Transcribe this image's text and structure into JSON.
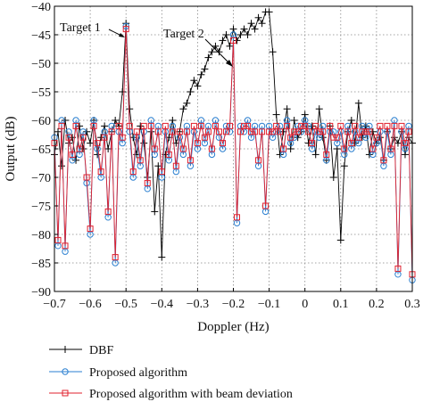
{
  "chart_data": {
    "type": "line",
    "title": "",
    "xlabel": "Doppler (Hz)",
    "ylabel": "Output (dB)",
    "xlim": [
      -0.7,
      0.3
    ],
    "ylim": [
      -90,
      -40
    ],
    "xticks": [
      -0.7,
      -0.6,
      -0.5,
      -0.4,
      -0.3,
      -0.2,
      -0.1,
      0,
      0.1,
      0.2,
      0.3
    ],
    "xtick_labels": [
      "−0.7",
      "−0.6",
      "−0.5",
      "−0.4",
      "−0.3",
      "−0.2",
      "−0.1",
      "0",
      "0.1",
      "0.2",
      "0.3"
    ],
    "yticks": [
      -90,
      -85,
      -80,
      -75,
      -70,
      -65,
      -60,
      -55,
      -50,
      -45,
      -40
    ],
    "ytick_labels": [
      "−90",
      "−85",
      "−80",
      "−75",
      "−70",
      "−65",
      "−60",
      "−55",
      "−50",
      "−45",
      "−40"
    ],
    "grid": true,
    "legend_position": "below",
    "annotations": [
      {
        "text": "Target 1",
        "x": -0.5,
        "y": -43.5
      },
      {
        "text": "Target 2",
        "x": -0.195,
        "y": -50.5
      }
    ],
    "series": [
      {
        "name": "DBF",
        "color": "#000000",
        "marker": "plus",
        "x": [
          -0.7,
          -0.69,
          -0.68,
          -0.67,
          -0.66,
          -0.65,
          -0.64,
          -0.63,
          -0.62,
          -0.61,
          -0.6,
          -0.59,
          -0.58,
          -0.57,
          -0.56,
          -0.55,
          -0.54,
          -0.53,
          -0.52,
          -0.51,
          -0.5,
          -0.49,
          -0.48,
          -0.47,
          -0.46,
          -0.45,
          -0.44,
          -0.43,
          -0.42,
          -0.41,
          -0.4,
          -0.39,
          -0.38,
          -0.37,
          -0.36,
          -0.35,
          -0.34,
          -0.33,
          -0.32,
          -0.31,
          -0.3,
          -0.29,
          -0.28,
          -0.27,
          -0.26,
          -0.25,
          -0.24,
          -0.23,
          -0.22,
          -0.21,
          -0.2,
          -0.19,
          -0.18,
          -0.17,
          -0.16,
          -0.15,
          -0.14,
          -0.13,
          -0.12,
          -0.11,
          -0.1,
          -0.09,
          -0.08,
          -0.07,
          -0.06,
          -0.05,
          -0.04,
          -0.03,
          -0.02,
          -0.01,
          0,
          0.01,
          0.02,
          0.03,
          0.04,
          0.05,
          0.06,
          0.07,
          0.08,
          0.09,
          0.1,
          0.11,
          0.12,
          0.13,
          0.14,
          0.15,
          0.16,
          0.17,
          0.18,
          0.19,
          0.2,
          0.21,
          0.22,
          0.23,
          0.24,
          0.25,
          0.26,
          0.27,
          0.28,
          0.29,
          0.3
        ],
        "y": [
          -66,
          -62,
          -68,
          -60,
          -64,
          -63,
          -67,
          -61,
          -65,
          -62,
          -64,
          -60,
          -66,
          -63,
          -61,
          -65,
          -62,
          -60,
          -61,
          -55,
          -43,
          -58,
          -63,
          -66,
          -61,
          -64,
          -70,
          -62,
          -76,
          -68,
          -84,
          -66,
          -63,
          -60,
          -64,
          -62,
          -58,
          -57,
          -55,
          -53,
          -54,
          -52,
          -51,
          -49,
          -48,
          -47,
          -48,
          -46,
          -45,
          -47,
          -44,
          -46,
          -45,
          -44,
          -45,
          -43,
          -44,
          -42,
          -43,
          -41,
          -41,
          -48,
          -59,
          -66,
          -62,
          -58,
          -65,
          -60,
          -63,
          -62,
          -59,
          -64,
          -61,
          -66,
          -58,
          -63,
          -67,
          -61,
          -70,
          -65,
          -81,
          -68,
          -62,
          -60,
          -64,
          -57,
          -63,
          -61,
          -66,
          -62,
          -64,
          -63,
          -67,
          -62,
          -65,
          -63,
          -64,
          -62,
          -66,
          -63,
          -64
        ]
      },
      {
        "name": "Proposed algorithm",
        "color": "#2a7fd0",
        "marker": "circle",
        "x": [
          -0.7,
          -0.69,
          -0.68,
          -0.67,
          -0.66,
          -0.65,
          -0.64,
          -0.63,
          -0.62,
          -0.61,
          -0.6,
          -0.59,
          -0.58,
          -0.57,
          -0.56,
          -0.55,
          -0.54,
          -0.53,
          -0.52,
          -0.51,
          -0.5,
          -0.49,
          -0.48,
          -0.47,
          -0.46,
          -0.45,
          -0.44,
          -0.43,
          -0.42,
          -0.41,
          -0.4,
          -0.39,
          -0.38,
          -0.37,
          -0.36,
          -0.35,
          -0.34,
          -0.33,
          -0.32,
          -0.31,
          -0.3,
          -0.29,
          -0.28,
          -0.27,
          -0.26,
          -0.25,
          -0.24,
          -0.23,
          -0.22,
          -0.21,
          -0.2,
          -0.19,
          -0.18,
          -0.17,
          -0.16,
          -0.15,
          -0.14,
          -0.13,
          -0.12,
          -0.11,
          -0.1,
          -0.09,
          -0.08,
          -0.07,
          -0.06,
          -0.05,
          -0.04,
          -0.03,
          -0.02,
          -0.01,
          0,
          0.01,
          0.02,
          0.03,
          0.04,
          0.05,
          0.06,
          0.07,
          0.08,
          0.09,
          0.1,
          0.11,
          0.12,
          0.13,
          0.14,
          0.15,
          0.16,
          0.17,
          0.18,
          0.19,
          0.2,
          0.21,
          0.22,
          0.23,
          0.24,
          0.25,
          0.26,
          0.27,
          0.28,
          0.29,
          0.3
        ],
        "y": [
          -63,
          -82,
          -60,
          -83,
          -62,
          -67,
          -60,
          -66,
          -62,
          -71,
          -80,
          -60,
          -65,
          -70,
          -62,
          -77,
          -61,
          -85,
          -62,
          -64,
          -43.5,
          -62,
          -70,
          -63,
          -68,
          -62,
          -72,
          -60,
          -66,
          -61,
          -70,
          -62,
          -67,
          -61,
          -69,
          -63,
          -66,
          -61,
          -68,
          -62,
          -65,
          -60,
          -64,
          -61,
          -66,
          -60,
          -63,
          -65,
          -61,
          -62,
          -45,
          -78,
          -61,
          -62,
          -60,
          -63,
          -61,
          -68,
          -61,
          -76,
          -61,
          -63,
          -62,
          -61,
          -66,
          -60,
          -64,
          -63,
          -61,
          -62,
          -60,
          -61,
          -65,
          -62,
          -63,
          -61,
          -67,
          -62,
          -62,
          -64,
          -62,
          -66,
          -61,
          -65,
          -62,
          -64,
          -61,
          -63,
          -61,
          -66,
          -64,
          -62,
          -68,
          -62,
          -66,
          -60,
          -87,
          -62,
          -65,
          -61,
          -88
        ]
      },
      {
        "name": "Proposed algorithm with beam deviation",
        "color": "#e0202e",
        "marker": "square",
        "x": [
          -0.7,
          -0.69,
          -0.68,
          -0.67,
          -0.66,
          -0.65,
          -0.64,
          -0.63,
          -0.62,
          -0.61,
          -0.6,
          -0.59,
          -0.58,
          -0.57,
          -0.56,
          -0.55,
          -0.54,
          -0.53,
          -0.52,
          -0.51,
          -0.5,
          -0.49,
          -0.48,
          -0.47,
          -0.46,
          -0.45,
          -0.44,
          -0.43,
          -0.42,
          -0.41,
          -0.4,
          -0.39,
          -0.38,
          -0.37,
          -0.36,
          -0.35,
          -0.34,
          -0.33,
          -0.32,
          -0.31,
          -0.3,
          -0.29,
          -0.28,
          -0.27,
          -0.26,
          -0.25,
          -0.24,
          -0.23,
          -0.22,
          -0.21,
          -0.2,
          -0.19,
          -0.18,
          -0.17,
          -0.16,
          -0.15,
          -0.14,
          -0.13,
          -0.12,
          -0.11,
          -0.1,
          -0.09,
          -0.08,
          -0.07,
          -0.06,
          -0.05,
          -0.04,
          -0.03,
          -0.02,
          -0.01,
          0,
          0.01,
          0.02,
          0.03,
          0.04,
          0.05,
          0.06,
          0.07,
          0.08,
          0.09,
          0.1,
          0.11,
          0.12,
          0.13,
          0.14,
          0.15,
          0.16,
          0.17,
          0.18,
          0.19,
          0.2,
          0.21,
          0.22,
          0.23,
          0.24,
          0.25,
          0.26,
          0.27,
          0.28,
          0.29,
          0.3
        ],
        "y": [
          -64,
          -81,
          -61,
          -82,
          -63,
          -66,
          -61,
          -65,
          -63,
          -70,
          -79,
          -61,
          -64,
          -69,
          -63,
          -76,
          -62,
          -84,
          -61,
          -63,
          -44,
          -61,
          -69,
          -62,
          -67,
          -61,
          -71,
          -61,
          -65,
          -62,
          -69,
          -61,
          -66,
          -62,
          -68,
          -62,
          -65,
          -62,
          -67,
          -61,
          -64,
          -61,
          -63,
          -62,
          -65,
          -61,
          -62,
          -64,
          -62,
          -61,
          -46,
          -77,
          -62,
          -61,
          -61,
          -62,
          -62,
          -67,
          -62,
          -75,
          -62,
          -62,
          -61,
          -62,
          -65,
          -61,
          -63,
          -62,
          -62,
          -61,
          -61,
          -62,
          -64,
          -61,
          -62,
          -62,
          -66,
          -61,
          -63,
          -63,
          -61,
          -65,
          -62,
          -64,
          -61,
          -63,
          -62,
          -62,
          -62,
          -65,
          -63,
          -61,
          -67,
          -61,
          -65,
          -61,
          -86,
          -61,
          -64,
          -62,
          -87
        ]
      }
    ]
  }
}
